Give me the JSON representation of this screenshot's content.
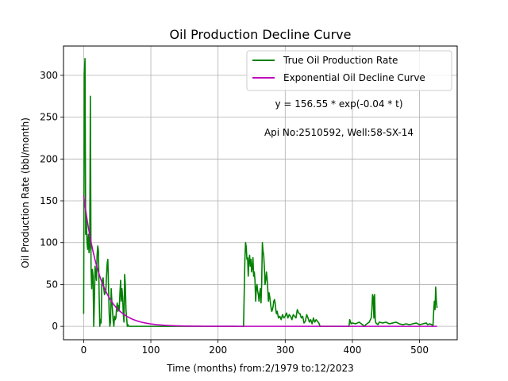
{
  "chart_data": {
    "type": "line",
    "title": "Oil Production Decline Curve",
    "xlabel": "Time (months) from:2/1979 to:12/2023",
    "ylabel": "Oil Production Rate (bbl/month)",
    "xlim": [
      -30,
      556
    ],
    "ylim": [
      -16,
      335
    ],
    "xticks": [
      0,
      100,
      200,
      300,
      400,
      500
    ],
    "yticks": [
      0,
      50,
      100,
      150,
      200,
      250,
      300
    ],
    "grid": true,
    "legend_position": "top-right",
    "annotations": [
      "y = 156.55 * exp(-0.04 * t)",
      "Api No:2510592, Well:58-SX-14"
    ],
    "fit": {
      "amplitude": 156.55,
      "rate": 0.04,
      "t_max": 526
    },
    "series": [
      {
        "name": "True Oil Production Rate",
        "color": "#008000",
        "points": [
          [
            0,
            15
          ],
          [
            1,
            300
          ],
          [
            2,
            320
          ],
          [
            3,
            110
          ],
          [
            4,
            130
          ],
          [
            5,
            100
          ],
          [
            6,
            92
          ],
          [
            7,
            110
          ],
          [
            8,
            88
          ],
          [
            9,
            95
          ],
          [
            10,
            275
          ],
          [
            11,
            70
          ],
          [
            12,
            45
          ],
          [
            13,
            68
          ],
          [
            14,
            60
          ],
          [
            15,
            0
          ],
          [
            16,
            30
          ],
          [
            17,
            72
          ],
          [
            18,
            65
          ],
          [
            19,
            55
          ],
          [
            20,
            85
          ],
          [
            21,
            96
          ],
          [
            22,
            90
          ],
          [
            23,
            40
          ],
          [
            24,
            0
          ],
          [
            25,
            8
          ],
          [
            26,
            4
          ],
          [
            27,
            50
          ],
          [
            28,
            55
          ],
          [
            29,
            58
          ],
          [
            30,
            45
          ],
          [
            31,
            38
          ],
          [
            32,
            40
          ],
          [
            33,
            42
          ],
          [
            34,
            60
          ],
          [
            35,
            75
          ],
          [
            36,
            80
          ],
          [
            37,
            48
          ],
          [
            38,
            15
          ],
          [
            39,
            0
          ],
          [
            40,
            5
          ],
          [
            41,
            45
          ],
          [
            42,
            30
          ],
          [
            43,
            18
          ],
          [
            44,
            6
          ],
          [
            45,
            0
          ],
          [
            46,
            12
          ],
          [
            47,
            8
          ],
          [
            48,
            10
          ],
          [
            49,
            22
          ],
          [
            50,
            28
          ],
          [
            51,
            18
          ],
          [
            52,
            25
          ],
          [
            53,
            20
          ],
          [
            54,
            40
          ],
          [
            55,
            55
          ],
          [
            56,
            30
          ],
          [
            57,
            45
          ],
          [
            58,
            35
          ],
          [
            59,
            15
          ],
          [
            60,
            5
          ],
          [
            61,
            62
          ],
          [
            62,
            50
          ],
          [
            63,
            20
          ],
          [
            64,
            10
          ],
          [
            65,
            0
          ],
          [
            66,
            2
          ],
          [
            67,
            0
          ],
          [
            70,
            0
          ],
          [
            90,
            0
          ],
          [
            120,
            0
          ],
          [
            150,
            0
          ],
          [
            180,
            0
          ],
          [
            210,
            0
          ],
          [
            238,
            0
          ],
          [
            240,
            80
          ],
          [
            241,
            100
          ],
          [
            242,
            95
          ],
          [
            243,
            80
          ],
          [
            244,
            82
          ],
          [
            245,
            60
          ],
          [
            246,
            78
          ],
          [
            247,
            85
          ],
          [
            248,
            72
          ],
          [
            249,
            80
          ],
          [
            250,
            65
          ],
          [
            251,
            70
          ],
          [
            252,
            82
          ],
          [
            253,
            60
          ],
          [
            254,
            65
          ],
          [
            255,
            55
          ],
          [
            256,
            30
          ],
          [
            257,
            45
          ],
          [
            258,
            50
          ],
          [
            259,
            42
          ],
          [
            260,
            38
          ],
          [
            261,
            30
          ],
          [
            262,
            40
          ],
          [
            263,
            45
          ],
          [
            264,
            28
          ],
          [
            265,
            52
          ],
          [
            266,
            100
          ],
          [
            267,
            90
          ],
          [
            268,
            85
          ],
          [
            269,
            70
          ],
          [
            270,
            50
          ],
          [
            271,
            55
          ],
          [
            272,
            65
          ],
          [
            273,
            58
          ],
          [
            274,
            45
          ],
          [
            275,
            30
          ],
          [
            276,
            40
          ],
          [
            277,
            35
          ],
          [
            278,
            28
          ],
          [
            279,
            22
          ],
          [
            280,
            18
          ],
          [
            281,
            20
          ],
          [
            282,
            24
          ],
          [
            283,
            30
          ],
          [
            284,
            32
          ],
          [
            285,
            28
          ],
          [
            286,
            20
          ],
          [
            287,
            15
          ],
          [
            288,
            18
          ],
          [
            290,
            10
          ],
          [
            292,
            12
          ],
          [
            294,
            8
          ],
          [
            296,
            14
          ],
          [
            298,
            10
          ],
          [
            300,
            12
          ],
          [
            302,
            16
          ],
          [
            304,
            10
          ],
          [
            306,
            14
          ],
          [
            308,
            12
          ],
          [
            310,
            8
          ],
          [
            312,
            14
          ],
          [
            314,
            12
          ],
          [
            316,
            10
          ],
          [
            318,
            20
          ],
          [
            320,
            16
          ],
          [
            322,
            15
          ],
          [
            324,
            10
          ],
          [
            326,
            12
          ],
          [
            328,
            4
          ],
          [
            330,
            6
          ],
          [
            332,
            14
          ],
          [
            334,
            10
          ],
          [
            336,
            5
          ],
          [
            338,
            8
          ],
          [
            340,
            3
          ],
          [
            342,
            10
          ],
          [
            344,
            5
          ],
          [
            346,
            8
          ],
          [
            348,
            6
          ],
          [
            350,
            4
          ],
          [
            352,
            0
          ],
          [
            395,
            0
          ],
          [
            396,
            8
          ],
          [
            397,
            6
          ],
          [
            398,
            3
          ],
          [
            400,
            4
          ],
          [
            405,
            3
          ],
          [
            410,
            5
          ],
          [
            415,
            2
          ],
          [
            418,
            0
          ],
          [
            420,
            2
          ],
          [
            425,
            5
          ],
          [
            428,
            10
          ],
          [
            429,
            20
          ],
          [
            430,
            38
          ],
          [
            431,
            35
          ],
          [
            432,
            10
          ],
          [
            433,
            38
          ],
          [
            434,
            8
          ],
          [
            435,
            4
          ],
          [
            438,
            2
          ],
          [
            440,
            5
          ],
          [
            445,
            4
          ],
          [
            450,
            5
          ],
          [
            455,
            3
          ],
          [
            460,
            4
          ],
          [
            465,
            5
          ],
          [
            470,
            3
          ],
          [
            475,
            2
          ],
          [
            480,
            3
          ],
          [
            485,
            2
          ],
          [
            490,
            3
          ],
          [
            495,
            4
          ],
          [
            500,
            2
          ],
          [
            505,
            3
          ],
          [
            510,
            4
          ],
          [
            512,
            2
          ],
          [
            515,
            3
          ],
          [
            518,
            2
          ],
          [
            520,
            1
          ],
          [
            521,
            18
          ],
          [
            522,
            30
          ],
          [
            523,
            20
          ],
          [
            524,
            47
          ],
          [
            525,
            30
          ],
          [
            526,
            22
          ]
        ]
      },
      {
        "name": "Exponential Oil Decline Curve",
        "color": "#bf00bf"
      }
    ]
  }
}
